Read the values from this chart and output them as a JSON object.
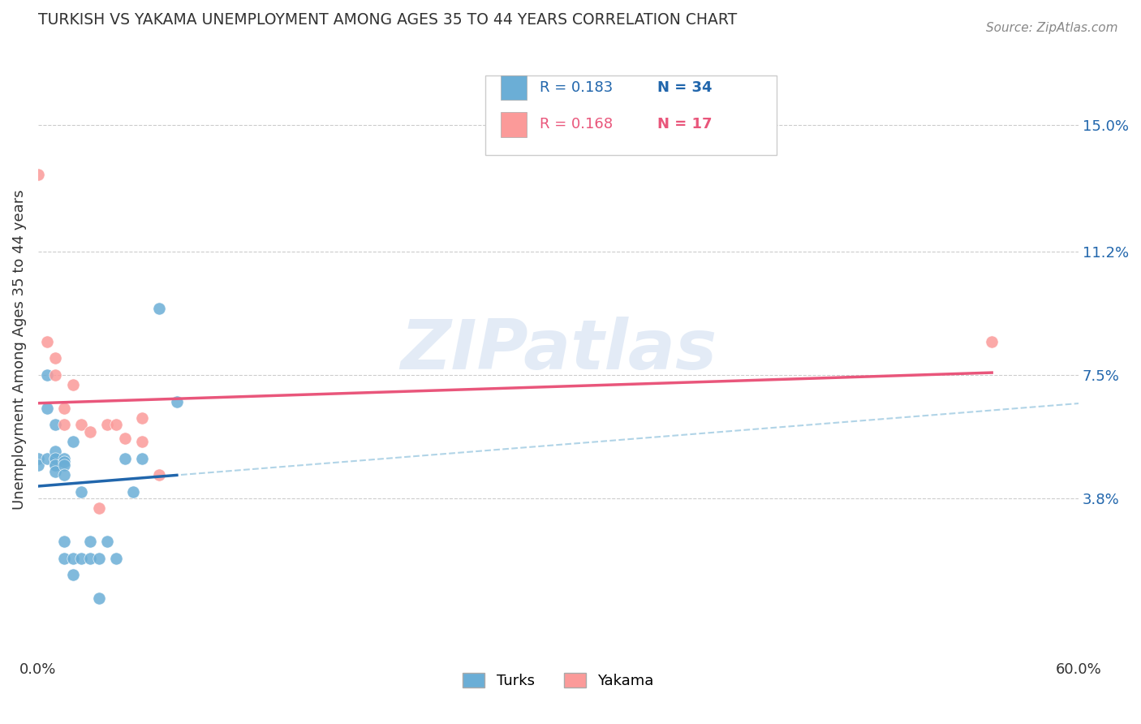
{
  "title": "TURKISH VS YAKAMA UNEMPLOYMENT AMONG AGES 35 TO 44 YEARS CORRELATION CHART",
  "source": "Source: ZipAtlas.com",
  "xlabel": "",
  "ylabel": "Unemployment Among Ages 35 to 44 years",
  "xlim": [
    0.0,
    0.6
  ],
  "ylim": [
    -0.01,
    0.175
  ],
  "xticks": [
    0.0,
    0.1,
    0.2,
    0.3,
    0.4,
    0.5,
    0.6
  ],
  "xticklabels": [
    "0.0%",
    "",
    "",
    "",
    "",
    "",
    "60.0%"
  ],
  "ytick_positions": [
    0.038,
    0.075,
    0.112,
    0.15
  ],
  "ytick_labels": [
    "3.8%",
    "7.5%",
    "11.2%",
    "15.0%"
  ],
  "turks_x": [
    0.0,
    0.0,
    0.005,
    0.005,
    0.005,
    0.01,
    0.01,
    0.01,
    0.01,
    0.01,
    0.01,
    0.01,
    0.015,
    0.015,
    0.015,
    0.015,
    0.015,
    0.015,
    0.02,
    0.02,
    0.02,
    0.025,
    0.025,
    0.03,
    0.03,
    0.035,
    0.035,
    0.04,
    0.045,
    0.05,
    0.055,
    0.06,
    0.07,
    0.08
  ],
  "turks_y": [
    0.05,
    0.048,
    0.075,
    0.065,
    0.05,
    0.048,
    0.05,
    0.052,
    0.06,
    0.05,
    0.048,
    0.046,
    0.05,
    0.049,
    0.048,
    0.045,
    0.025,
    0.02,
    0.015,
    0.02,
    0.055,
    0.04,
    0.02,
    0.025,
    0.02,
    0.02,
    0.008,
    0.025,
    0.02,
    0.05,
    0.04,
    0.05,
    0.095,
    0.067
  ],
  "yakama_x": [
    0.0,
    0.005,
    0.01,
    0.01,
    0.015,
    0.015,
    0.02,
    0.025,
    0.03,
    0.035,
    0.04,
    0.045,
    0.05,
    0.06,
    0.06,
    0.07,
    0.55
  ],
  "yakama_y": [
    0.135,
    0.085,
    0.08,
    0.075,
    0.065,
    0.06,
    0.072,
    0.06,
    0.058,
    0.035,
    0.06,
    0.06,
    0.056,
    0.055,
    0.062,
    0.045,
    0.085
  ],
  "turks_color": "#6baed6",
  "yakama_color": "#fb9a99",
  "turks_line_color": "#2166ac",
  "yakama_line_color": "#e9567b",
  "dashed_line_color": "#9ecae1",
  "R_turks": 0.183,
  "N_turks": 34,
  "R_yakama": 0.168,
  "N_yakama": 17,
  "watermark": "ZIPatlas",
  "background_color": "#ffffff",
  "grid_color": "#cccccc"
}
